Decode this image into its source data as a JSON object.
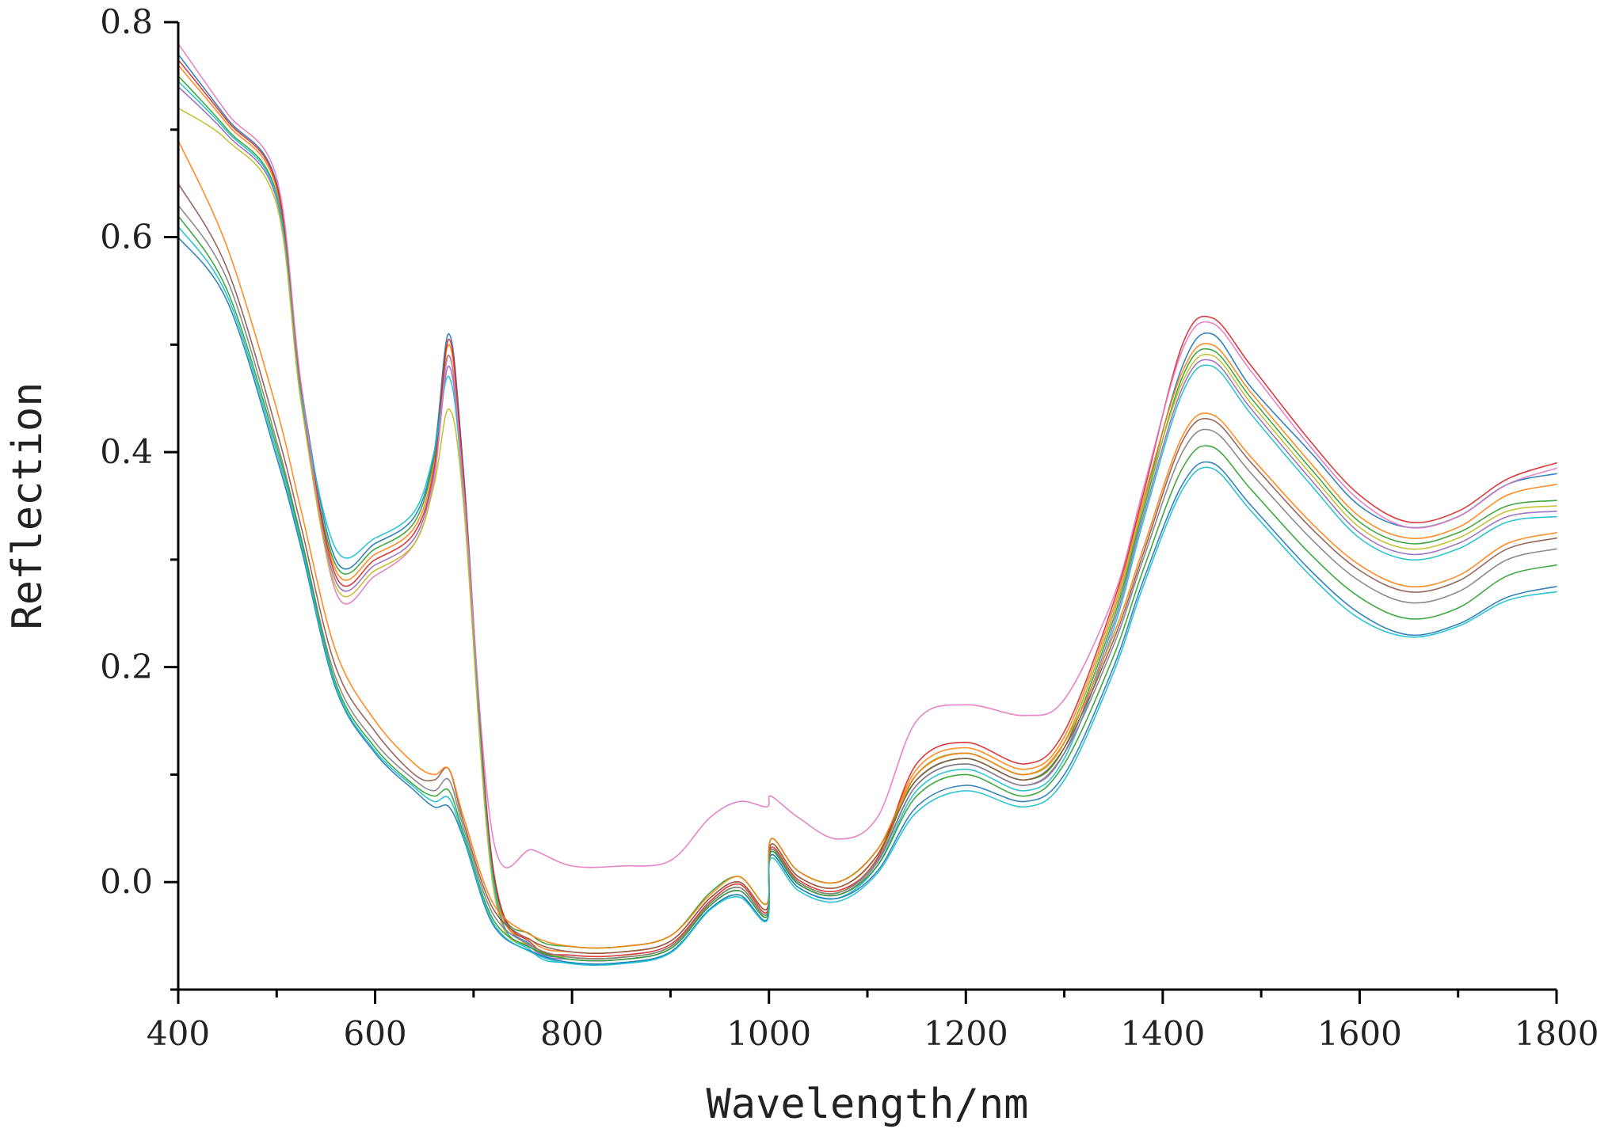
{
  "chart_data": {
    "type": "line",
    "title": "",
    "xlabel": "Wavelength/nm",
    "ylabel": "Reflection",
    "xlim": [
      400,
      1800
    ],
    "ylim": [
      -0.1,
      0.8
    ],
    "x_ticks": [
      400,
      600,
      800,
      1000,
      1200,
      1400,
      1600,
      1800
    ],
    "x_tick_labels": [
      "400",
      "600",
      "800",
      "1000",
      "1200",
      "1400",
      "1600",
      "1800"
    ],
    "y_ticks": [
      0.0,
      0.2,
      0.4,
      0.6,
      0.8
    ],
    "y_tick_labels": [
      "0.0",
      "0.2",
      "0.4",
      "0.6",
      "0.8"
    ],
    "grid": false,
    "legend": "none",
    "x": [
      400,
      450,
      500,
      525,
      560,
      600,
      640,
      660,
      675,
      690,
      720,
      760,
      800,
      850,
      900,
      940,
      970,
      998,
      1002,
      1030,
      1070,
      1110,
      1150,
      1200,
      1260,
      1300,
      1350,
      1380,
      1420,
      1450,
      1490,
      1550,
      1600,
      1650,
      1700,
      1750,
      1800
    ],
    "series": [
      {
        "color": "#1f77b4",
        "values": [
          0.77,
          0.71,
          0.65,
          0.46,
          0.3,
          0.315,
          0.34,
          0.4,
          0.51,
          0.38,
          0.01,
          -0.06,
          -0.07,
          -0.07,
          -0.06,
          -0.02,
          -0.005,
          -0.03,
          0.03,
          0.0,
          -0.01,
          0.02,
          0.1,
          0.12,
          0.1,
          0.13,
          0.25,
          0.35,
          0.48,
          0.51,
          0.46,
          0.4,
          0.35,
          0.33,
          0.34,
          0.37,
          0.38
        ]
      },
      {
        "color": "#ff7f0e",
        "values": [
          0.76,
          0.705,
          0.645,
          0.455,
          0.29,
          0.305,
          0.33,
          0.39,
          0.5,
          0.37,
          0.005,
          -0.055,
          -0.065,
          -0.065,
          -0.055,
          -0.015,
          0.0,
          -0.025,
          0.035,
          0.005,
          -0.005,
          0.025,
          0.105,
          0.125,
          0.105,
          0.135,
          0.255,
          0.355,
          0.475,
          0.5,
          0.455,
          0.39,
          0.34,
          0.32,
          0.33,
          0.36,
          0.37
        ]
      },
      {
        "color": "#2ca02c",
        "values": [
          0.75,
          0.7,
          0.64,
          0.45,
          0.295,
          0.31,
          0.335,
          0.395,
          0.49,
          0.365,
          0.008,
          -0.05,
          -0.06,
          -0.06,
          -0.05,
          -0.01,
          0.005,
          -0.02,
          0.04,
          0.01,
          0.0,
          0.03,
          0.095,
          0.115,
          0.095,
          0.125,
          0.245,
          0.345,
          0.47,
          0.495,
          0.45,
          0.385,
          0.335,
          0.315,
          0.325,
          0.35,
          0.355
        ]
      },
      {
        "color": "#d62728",
        "values": [
          0.765,
          0.708,
          0.648,
          0.458,
          0.285,
          0.3,
          0.325,
          0.385,
          0.505,
          0.375,
          0.012,
          -0.058,
          -0.068,
          -0.068,
          -0.058,
          -0.018,
          -0.002,
          -0.028,
          0.032,
          0.002,
          -0.008,
          0.022,
          0.11,
          0.13,
          0.11,
          0.14,
          0.26,
          0.36,
          0.5,
          0.525,
          0.48,
          0.41,
          0.36,
          0.335,
          0.345,
          0.375,
          0.39
        ]
      },
      {
        "color": "#9467bd",
        "values": [
          0.74,
          0.695,
          0.635,
          0.448,
          0.28,
          0.295,
          0.32,
          0.38,
          0.48,
          0.36,
          0.0,
          -0.062,
          -0.072,
          -0.072,
          -0.062,
          -0.022,
          -0.008,
          -0.032,
          0.028,
          -0.002,
          -0.012,
          0.018,
          0.09,
          0.11,
          0.09,
          0.12,
          0.24,
          0.34,
          0.46,
          0.485,
          0.44,
          0.375,
          0.325,
          0.305,
          0.315,
          0.34,
          0.345
        ]
      },
      {
        "color": "#17becf",
        "values": [
          0.745,
          0.698,
          0.638,
          0.452,
          0.31,
          0.32,
          0.345,
          0.4,
          0.47,
          0.36,
          0.002,
          -0.065,
          -0.075,
          -0.075,
          -0.065,
          -0.025,
          -0.012,
          -0.035,
          0.025,
          -0.005,
          -0.015,
          0.015,
          0.085,
          0.105,
          0.085,
          0.115,
          0.235,
          0.335,
          0.455,
          0.48,
          0.435,
          0.37,
          0.32,
          0.3,
          0.31,
          0.335,
          0.34
        ]
      },
      {
        "color": "#e377c2",
        "values": [
          0.78,
          0.715,
          0.655,
          0.462,
          0.27,
          0.285,
          0.315,
          0.375,
          0.49,
          0.365,
          0.04,
          0.03,
          0.015,
          0.015,
          0.02,
          0.06,
          0.075,
          0.07,
          0.08,
          0.06,
          0.04,
          0.06,
          0.15,
          0.165,
          0.155,
          0.17,
          0.265,
          0.365,
          0.495,
          0.52,
          0.475,
          0.405,
          0.355,
          0.33,
          0.34,
          0.37,
          0.385
        ]
      },
      {
        "color": "#bcbd22",
        "values": [
          0.72,
          0.69,
          0.63,
          0.445,
          0.275,
          0.29,
          0.315,
          0.37,
          0.44,
          0.35,
          -0.005,
          -0.06,
          -0.07,
          -0.07,
          -0.06,
          -0.02,
          -0.005,
          -0.03,
          0.03,
          0.0,
          -0.01,
          0.02,
          0.1,
          0.12,
          0.1,
          0.13,
          0.25,
          0.35,
          0.465,
          0.49,
          0.445,
          0.38,
          0.33,
          0.31,
          0.32,
          0.345,
          0.35
        ]
      },
      {
        "color": "#7f7f7f",
        "values": [
          0.63,
          0.56,
          0.41,
          0.32,
          0.19,
          0.13,
          0.095,
          0.085,
          0.095,
          0.05,
          -0.03,
          -0.06,
          -0.07,
          -0.07,
          -0.06,
          -0.02,
          -0.005,
          -0.03,
          0.03,
          0.0,
          -0.01,
          0.02,
          0.09,
          0.11,
          0.09,
          0.12,
          0.22,
          0.3,
          0.4,
          0.42,
          0.38,
          0.32,
          0.28,
          0.26,
          0.27,
          0.3,
          0.31
        ]
      },
      {
        "color": "#8c564b",
        "values": [
          0.65,
          0.57,
          0.42,
          0.33,
          0.2,
          0.14,
          0.1,
          0.095,
          0.105,
          0.055,
          -0.025,
          -0.055,
          -0.065,
          -0.065,
          -0.055,
          -0.015,
          0.0,
          -0.025,
          0.035,
          0.005,
          -0.005,
          0.025,
          0.095,
          0.115,
          0.095,
          0.125,
          0.225,
          0.305,
          0.41,
          0.43,
          0.39,
          0.33,
          0.29,
          0.27,
          0.28,
          0.31,
          0.32
        ]
      },
      {
        "color": "#1f77b4",
        "values": [
          0.6,
          0.54,
          0.395,
          0.31,
          0.18,
          0.12,
          0.085,
          0.07,
          0.07,
          0.04,
          -0.04,
          -0.065,
          -0.075,
          -0.075,
          -0.065,
          -0.025,
          -0.012,
          -0.035,
          0.025,
          -0.005,
          -0.015,
          0.01,
          0.07,
          0.09,
          0.075,
          0.1,
          0.2,
          0.28,
          0.37,
          0.39,
          0.35,
          0.29,
          0.25,
          0.23,
          0.24,
          0.265,
          0.275
        ]
      },
      {
        "color": "#2ca02c",
        "values": [
          0.62,
          0.55,
          0.405,
          0.318,
          0.185,
          0.125,
          0.09,
          0.08,
          0.085,
          0.045,
          -0.035,
          -0.062,
          -0.072,
          -0.072,
          -0.062,
          -0.022,
          -0.008,
          -0.032,
          0.028,
          -0.002,
          -0.012,
          0.015,
          0.08,
          0.1,
          0.08,
          0.11,
          0.21,
          0.29,
          0.385,
          0.405,
          0.365,
          0.305,
          0.265,
          0.245,
          0.255,
          0.285,
          0.295
        ]
      },
      {
        "color": "#ff7f0e",
        "values": [
          0.69,
          0.59,
          0.44,
          0.345,
          0.215,
          0.15,
          0.11,
          0.1,
          0.105,
          0.06,
          -0.02,
          -0.05,
          -0.06,
          -0.06,
          -0.05,
          -0.012,
          0.005,
          -0.02,
          0.04,
          0.01,
          0.0,
          0.03,
          0.1,
          0.12,
          0.1,
          0.13,
          0.23,
          0.31,
          0.415,
          0.435,
          0.395,
          0.335,
          0.295,
          0.275,
          0.285,
          0.315,
          0.325
        ]
      },
      {
        "color": "#17becf",
        "values": [
          0.61,
          0.545,
          0.4,
          0.314,
          0.182,
          0.122,
          0.088,
          0.075,
          0.078,
          0.042,
          -0.038,
          -0.066,
          -0.076,
          -0.076,
          -0.066,
          -0.026,
          -0.014,
          -0.036,
          0.022,
          -0.008,
          -0.018,
          0.008,
          0.065,
          0.085,
          0.07,
          0.095,
          0.195,
          0.275,
          0.365,
          0.385,
          0.345,
          0.285,
          0.245,
          0.228,
          0.238,
          0.262,
          0.27
        ]
      }
    ]
  }
}
